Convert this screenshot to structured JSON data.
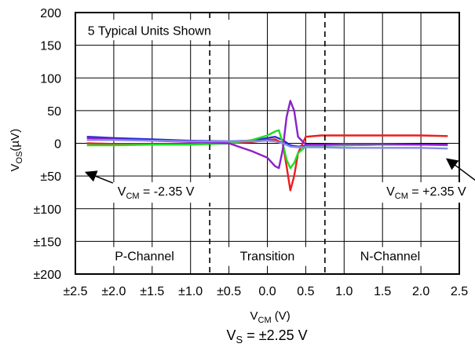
{
  "chart_data": {
    "type": "line",
    "annotation_units": "5 Typical Units Shown",
    "xlabel": {
      "main": "V",
      "sub": "CM",
      "rest": " (V)"
    },
    "ylabel": {
      "main": "V",
      "sub": "OS",
      "rest": "(µV)"
    },
    "footer": {
      "main": "V",
      "sub": "S",
      "rest": " = ±2.25 V"
    },
    "xlim": [
      -2.5,
      2.5
    ],
    "ylim": [
      -200,
      200
    ],
    "x_ticks": [
      -2.5,
      -2.0,
      -1.5,
      -1.0,
      -0.5,
      0.0,
      0.5,
      1.0,
      1.5,
      2.0,
      2.5
    ],
    "x_tick_labels": [
      "±2.5",
      "±2.0",
      "±1.5",
      "±1.0",
      "±0.5",
      "0.0",
      "0.5",
      "1.0",
      "1.5",
      "2.0",
      "2.5"
    ],
    "y_ticks": [
      200,
      150,
      100,
      50,
      0,
      -50,
      -100,
      -150,
      -200
    ],
    "y_tick_labels": [
      "200",
      "150",
      "100",
      "50",
      "0",
      "±50",
      "±100",
      "±150",
      "±200"
    ],
    "grid": true,
    "region_dividers": [
      -0.75,
      0.75
    ],
    "regions": [
      {
        "label": "P-Channel",
        "x": -1.6
      },
      {
        "label": "Transition",
        "x": 0.0
      },
      {
        "label": "N-Channel",
        "x": 1.6
      }
    ],
    "callouts": [
      {
        "main": "V",
        "sub": "CM",
        "rest": " = -2.35 V",
        "point": [
          -2.35,
          -45
        ],
        "label_at": [
          -1.95,
          -80
        ]
      },
      {
        "main": "V",
        "sub": "CM",
        "rest": " = +2.35 V",
        "point": [
          2.35,
          -25
        ],
        "label_at": [
          1.55,
          -80
        ]
      }
    ],
    "series": [
      {
        "color": "#2b2bd6",
        "x": [
          -2.35,
          -2.0,
          -1.5,
          -1.0,
          -0.5,
          -0.2,
          0.0,
          0.1,
          0.2,
          0.3,
          0.4,
          0.5,
          0.7,
          1.0,
          1.5,
          2.0,
          2.35
        ],
        "y": [
          10,
          8,
          6,
          4,
          3,
          4,
          8,
          10,
          5,
          -3,
          -5,
          -4,
          -3,
          -3,
          -2,
          -2,
          -2
        ]
      },
      {
        "color": "#ee1c1c",
        "x": [
          -2.35,
          -2.0,
          -1.5,
          -1.0,
          -0.5,
          -0.2,
          0.0,
          0.1,
          0.2,
          0.25,
          0.3,
          0.35,
          0.4,
          0.5,
          0.7,
          1.0,
          1.5,
          2.0,
          2.35
        ],
        "y": [
          0,
          -1,
          -1,
          -1,
          0,
          2,
          5,
          6,
          0,
          -35,
          -72,
          -50,
          -15,
          10,
          12,
          12,
          12,
          12,
          11
        ]
      },
      {
        "color": "#22dd22",
        "x": [
          -2.35,
          -2.0,
          -1.5,
          -1.0,
          -0.5,
          -0.2,
          0.0,
          0.1,
          0.15,
          0.2,
          0.25,
          0.3,
          0.35,
          0.4,
          0.5,
          0.7,
          1.0,
          1.5,
          2.0,
          2.35
        ],
        "y": [
          -3,
          -3,
          -2,
          -2,
          0,
          5,
          12,
          18,
          20,
          0,
          -25,
          -38,
          -30,
          -15,
          -5,
          -3,
          -3,
          -2,
          -2,
          -3
        ]
      },
      {
        "color": "#8a22c9",
        "x": [
          -2.35,
          -2.0,
          -1.5,
          -1.0,
          -0.5,
          -0.3,
          -0.2,
          0.0,
          0.1,
          0.15,
          0.2,
          0.25,
          0.3,
          0.35,
          0.4,
          0.5,
          0.7,
          1.0,
          1.5,
          2.0,
          2.35
        ],
        "y": [
          8,
          6,
          4,
          2,
          0,
          -8,
          -12,
          -22,
          -35,
          -38,
          -10,
          40,
          65,
          50,
          10,
          -2,
          -2,
          -1,
          -1,
          -2,
          -2
        ]
      },
      {
        "color": "#8a8ae8",
        "x": [
          -2.35,
          -2.0,
          -1.5,
          -1.0,
          -0.5,
          -0.2,
          0.0,
          0.1,
          0.2,
          0.3,
          0.4,
          0.5,
          0.7,
          1.0,
          1.5,
          2.0,
          2.35
        ],
        "y": [
          5,
          5,
          4,
          3,
          3,
          3,
          4,
          3,
          0,
          -5,
          -6,
          -6,
          -6,
          -7,
          -7,
          -7,
          -8
        ]
      }
    ]
  }
}
